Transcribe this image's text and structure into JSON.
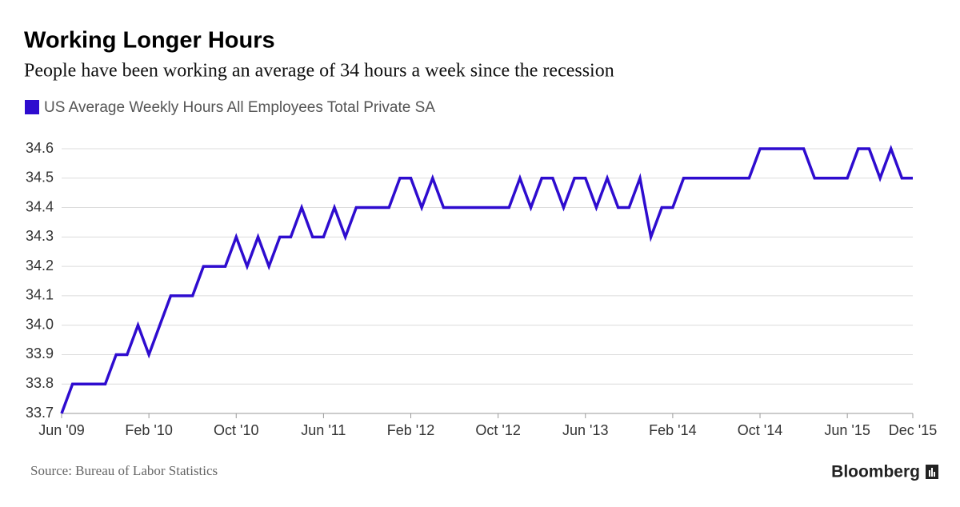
{
  "chart_data": {
    "type": "line",
    "title": "Working Longer Hours",
    "subtitle": "People have been working an average of 34 hours a week since the recession",
    "source": "Source: Bureau of Labor Statistics",
    "brand": "Bloomberg",
    "categories": [
      "Jun '09",
      null,
      null,
      null,
      null,
      null,
      null,
      null,
      "Feb '10",
      null,
      null,
      null,
      null,
      null,
      null,
      null,
      "Oct '10",
      null,
      null,
      null,
      null,
      null,
      null,
      null,
      "Jun '11",
      null,
      null,
      null,
      null,
      null,
      null,
      null,
      "Feb '12",
      null,
      null,
      null,
      null,
      null,
      null,
      null,
      "Oct '12",
      null,
      null,
      null,
      null,
      null,
      null,
      null,
      "Jun '13",
      null,
      null,
      null,
      null,
      null,
      null,
      null,
      "Feb '14",
      null,
      null,
      null,
      null,
      null,
      null,
      null,
      "Oct '14",
      null,
      null,
      null,
      null,
      null,
      null,
      null,
      "Jun '15",
      null,
      null,
      null,
      null,
      null,
      "Dec '15"
    ],
    "series": [
      {
        "name": "US Average Weekly Hours All Employees Total Private SA",
        "color": "#2e0ccf",
        "values": [
          33.7,
          33.8,
          33.8,
          33.8,
          33.8,
          33.9,
          33.9,
          34.0,
          33.9,
          34.0,
          34.1,
          34.1,
          34.1,
          34.2,
          34.2,
          34.2,
          34.3,
          34.2,
          34.3,
          34.2,
          34.3,
          34.3,
          34.4,
          34.3,
          34.3,
          34.4,
          34.3,
          34.4,
          34.4,
          34.4,
          34.4,
          34.5,
          34.5,
          34.4,
          34.5,
          34.4,
          34.4,
          34.4,
          34.4,
          34.4,
          34.4,
          34.4,
          34.5,
          34.4,
          34.5,
          34.5,
          34.4,
          34.5,
          34.5,
          34.4,
          34.5,
          34.4,
          34.4,
          34.5,
          34.3,
          34.4,
          34.4,
          34.5,
          34.5,
          34.5,
          34.5,
          34.5,
          34.5,
          34.5,
          34.6,
          34.6,
          34.6,
          34.6,
          34.6,
          34.5,
          34.5,
          34.5,
          34.5,
          34.6,
          34.6,
          34.5,
          34.6,
          34.5,
          34.5
        ]
      }
    ],
    "ylim": [
      33.7,
      34.6
    ],
    "yticks": [
      33.7,
      33.8,
      33.9,
      {
        "value": 34,
        "label": "34.0"
      },
      34.1,
      34.2,
      34.3,
      34.4,
      34.5,
      34.6
    ],
    "grid": true
  }
}
